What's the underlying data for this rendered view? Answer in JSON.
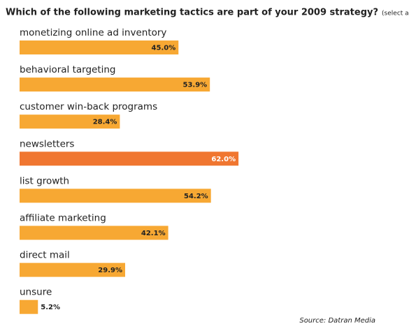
{
  "chart_data": {
    "type": "hbar",
    "title": "Which of the following marketing tactics are part of your 2009 strategy?",
    "subtitle": "(select all that apply)",
    "categories": [
      "monetizing online ad inventory",
      "behavioral targeting",
      "customer win-back programs",
      "newsletters",
      "list growth",
      "affiliate marketing",
      "direct mail",
      "unsure"
    ],
    "values": [
      45.0,
      53.9,
      28.4,
      62.0,
      54.2,
      42.1,
      29.9,
      5.2
    ],
    "value_labels": [
      "45.0%",
      "53.9%",
      "28.4%",
      "62.0%",
      "54.2%",
      "42.1%",
      "29.9%",
      "5.2%"
    ],
    "colors": [
      "#f7a833",
      "#f7a833",
      "#f7a833",
      "#f07630",
      "#f7a833",
      "#f7a833",
      "#f7a833",
      "#f7a833"
    ],
    "source": "Source: Datran Media"
  }
}
